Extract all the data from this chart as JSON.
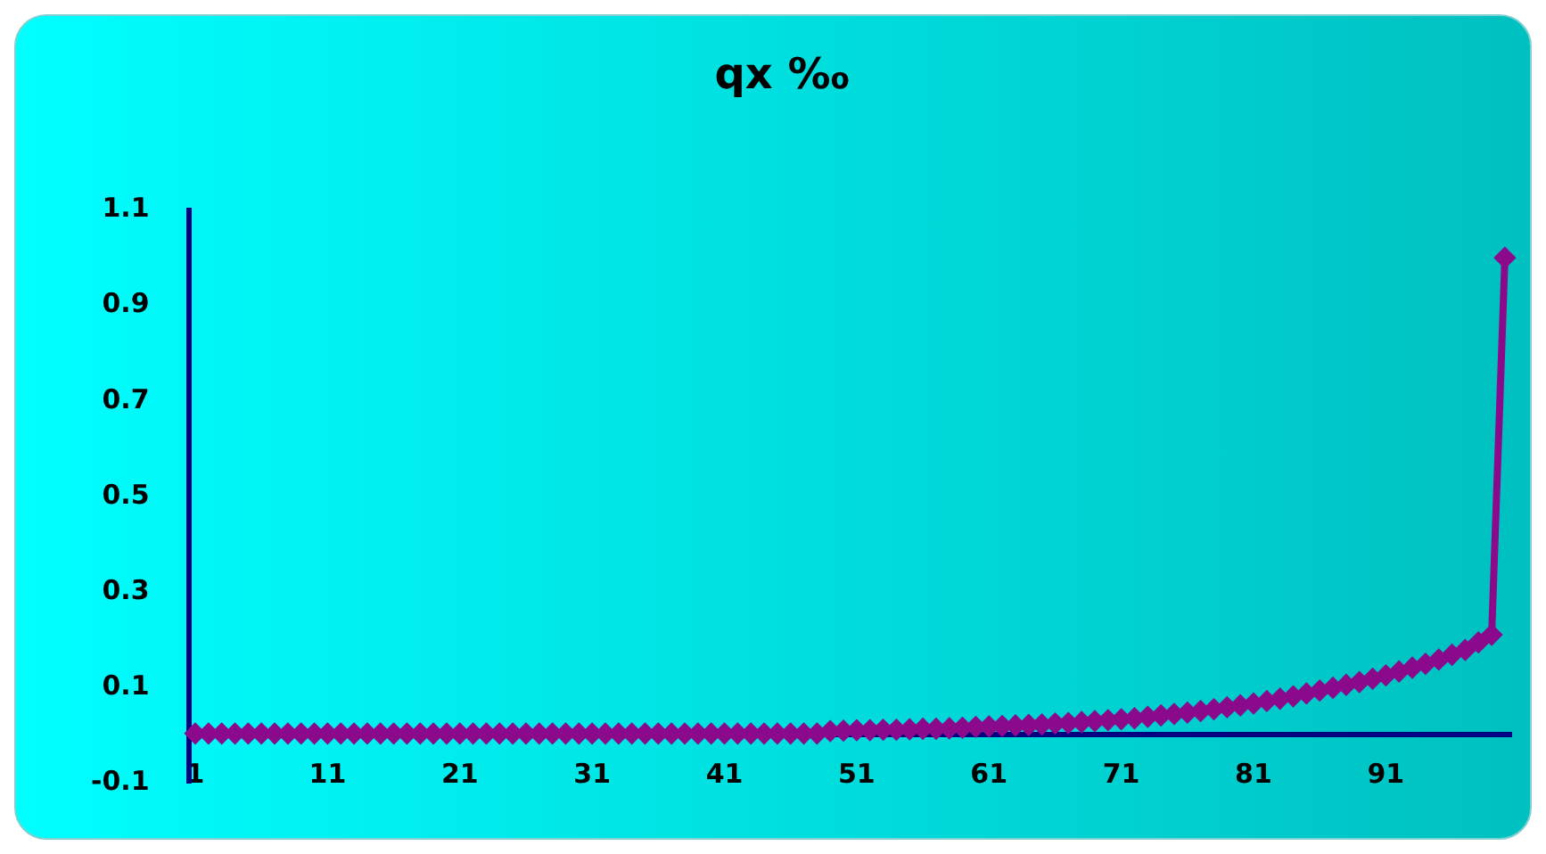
{
  "chart_data": {
    "type": "line",
    "title": "qx ‰",
    "categories": [
      "1",
      null,
      null,
      null,
      null,
      null,
      null,
      null,
      null,
      null,
      "11",
      null,
      null,
      null,
      null,
      null,
      null,
      null,
      null,
      null,
      "21",
      null,
      null,
      null,
      null,
      null,
      null,
      null,
      null,
      null,
      "31",
      null,
      null,
      null,
      null,
      null,
      null,
      null,
      null,
      null,
      "41",
      null,
      null,
      null,
      null,
      null,
      null,
      null,
      null,
      null,
      "51",
      null,
      null,
      null,
      null,
      null,
      null,
      null,
      null,
      null,
      "61",
      null,
      null,
      null,
      null,
      null,
      null,
      null,
      null,
      null,
      "71",
      null,
      null,
      null,
      null,
      null,
      null,
      null,
      null,
      null,
      "81",
      null,
      null,
      null,
      null,
      null,
      null,
      null,
      null,
      null,
      "91",
      null,
      null,
      null,
      null,
      null,
      null,
      null,
      null,
      null
    ],
    "series": [
      {
        "color": "#8b0a8b",
        "values": [
          0.003,
          0.003,
          0.003,
          0.003,
          0.003,
          0.003,
          0.003,
          0.003,
          0.003,
          0.003,
          0.003,
          0.003,
          0.003,
          0.003,
          0.003,
          0.003,
          0.003,
          0.003,
          0.003,
          0.003,
          0.003,
          0.003,
          0.003,
          0.003,
          0.003,
          0.003,
          0.003,
          0.003,
          0.003,
          0.003,
          0.003,
          0.003,
          0.003,
          0.003,
          0.003,
          0.003,
          0.003,
          0.003,
          0.003,
          0.003,
          0.003,
          0.003,
          0.003,
          0.003,
          0.003,
          0.003,
          0.003,
          0.003,
          0.008,
          0.009,
          0.01,
          0.01,
          0.011,
          0.011,
          0.012,
          0.013,
          0.013,
          0.014,
          0.015,
          0.017,
          0.018,
          0.019,
          0.02,
          0.021,
          0.022,
          0.024,
          0.025,
          0.027,
          0.029,
          0.031,
          0.033,
          0.035,
          0.038,
          0.041,
          0.044,
          0.047,
          0.05,
          0.054,
          0.058,
          0.062,
          0.066,
          0.071,
          0.076,
          0.081,
          0.087,
          0.093,
          0.099,
          0.105,
          0.111,
          0.118,
          0.125,
          0.133,
          0.141,
          0.149,
          0.158,
          0.168,
          0.178,
          0.194,
          0.21,
          1.0
        ]
      }
    ],
    "ylim": [
      -0.1,
      1.1
    ],
    "yticks": [
      -0.1,
      0.1,
      0.3,
      0.5,
      0.7,
      0.9,
      1.1
    ],
    "grid": false,
    "legend": false,
    "marker": "diamond",
    "line_style": "solid"
  }
}
